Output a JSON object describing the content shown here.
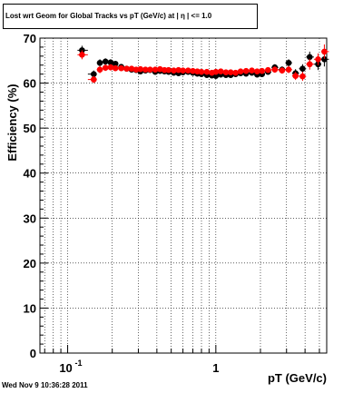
{
  "chart_data": {
    "type": "scatter",
    "title": "Lost wrt Geom for Global Tracks vs pT (GeV/c) at |  η | <= 1.0",
    "xlabel": "pT (GeV/c)",
    "ylabel": "Efficiency (%)",
    "xscale": "log",
    "xlim": [
      0.065,
      5.6
    ],
    "ylim": [
      0,
      70
    ],
    "grid": true,
    "yticks": [
      "0",
      "10",
      "20",
      "30",
      "40",
      "50",
      "60",
      "70"
    ],
    "xticks": [
      {
        "value": 0.1,
        "base": "10",
        "exp": "-1"
      },
      {
        "value": 1,
        "label": "1"
      }
    ],
    "series": [
      {
        "color": "#000000",
        "x": [
          0.125,
          0.15,
          0.165,
          0.18,
          0.195,
          0.21,
          0.23,
          0.25,
          0.27,
          0.29,
          0.31,
          0.335,
          0.36,
          0.39,
          0.42,
          0.45,
          0.48,
          0.52,
          0.56,
          0.6,
          0.65,
          0.7,
          0.75,
          0.8,
          0.87,
          0.94,
          1.0,
          1.08,
          1.17,
          1.26,
          1.36,
          1.47,
          1.6,
          1.75,
          1.9,
          2.05,
          2.25,
          2.5,
          2.8,
          3.1,
          3.45,
          3.85,
          4.3,
          4.9,
          5.4
        ],
        "y": [
          67.3,
          62.0,
          64.5,
          64.8,
          64.6,
          64.3,
          63.6,
          63.2,
          63.0,
          62.9,
          62.6,
          62.8,
          62.9,
          62.5,
          62.7,
          62.6,
          62.5,
          62.3,
          62.2,
          62.4,
          62.5,
          62.3,
          62.1,
          62.0,
          61.8,
          61.7,
          61.6,
          61.9,
          61.8,
          61.8,
          62.0,
          62.2,
          62.1,
          62.3,
          61.9,
          62.0,
          62.5,
          63.5,
          63.0,
          64.5,
          62.2,
          63.2,
          65.8,
          64.2,
          65.3
        ],
        "err": [
          1.0,
          0.8,
          0.8,
          0.7,
          0.7,
          0.6,
          0.6,
          0.5,
          0.5,
          0.5,
          0.5,
          0.5,
          0.5,
          0.5,
          0.5,
          0.5,
          0.5,
          0.5,
          0.5,
          0.5,
          0.5,
          0.5,
          0.5,
          0.5,
          0.5,
          0.5,
          0.5,
          0.5,
          0.5,
          0.5,
          0.5,
          0.5,
          0.5,
          0.5,
          0.5,
          0.6,
          0.6,
          0.7,
          0.7,
          0.8,
          0.9,
          1.0,
          1.2,
          1.3,
          1.6
        ]
      },
      {
        "color": "#ff0000",
        "x": [
          0.125,
          0.15,
          0.165,
          0.18,
          0.195,
          0.21,
          0.23,
          0.25,
          0.27,
          0.29,
          0.31,
          0.335,
          0.36,
          0.39,
          0.42,
          0.45,
          0.48,
          0.52,
          0.56,
          0.6,
          0.65,
          0.7,
          0.75,
          0.8,
          0.87,
          0.94,
          1.0,
          1.08,
          1.17,
          1.26,
          1.36,
          1.47,
          1.6,
          1.75,
          1.9,
          2.05,
          2.25,
          2.5,
          2.8,
          3.1,
          3.45,
          3.85,
          4.3,
          4.9,
          5.4
        ],
        "y": [
          66.3,
          60.8,
          63.0,
          63.4,
          63.5,
          63.3,
          63.3,
          63.2,
          63.2,
          63.0,
          63.1,
          63.0,
          63.0,
          63.0,
          63.1,
          62.9,
          62.9,
          62.8,
          62.9,
          62.8,
          62.8,
          62.7,
          62.6,
          62.5,
          62.5,
          62.3,
          62.5,
          62.6,
          62.4,
          62.4,
          62.3,
          62.6,
          62.7,
          62.8,
          62.6,
          62.7,
          62.9,
          63.0,
          62.8,
          63.0,
          61.6,
          61.5,
          64.2,
          65.3,
          67.0
        ],
        "err": [
          1.0,
          0.8,
          0.8,
          0.7,
          0.7,
          0.6,
          0.6,
          0.5,
          0.5,
          0.5,
          0.5,
          0.5,
          0.5,
          0.5,
          0.5,
          0.5,
          0.5,
          0.5,
          0.5,
          0.5,
          0.5,
          0.5,
          0.5,
          0.5,
          0.5,
          0.5,
          0.5,
          0.5,
          0.5,
          0.5,
          0.5,
          0.5,
          0.5,
          0.5,
          0.5,
          0.6,
          0.6,
          0.7,
          0.7,
          0.8,
          0.9,
          1.0,
          1.2,
          1.3,
          1.6
        ]
      }
    ]
  },
  "timestamp": "Wed Nov  9 10:36:28 2011"
}
